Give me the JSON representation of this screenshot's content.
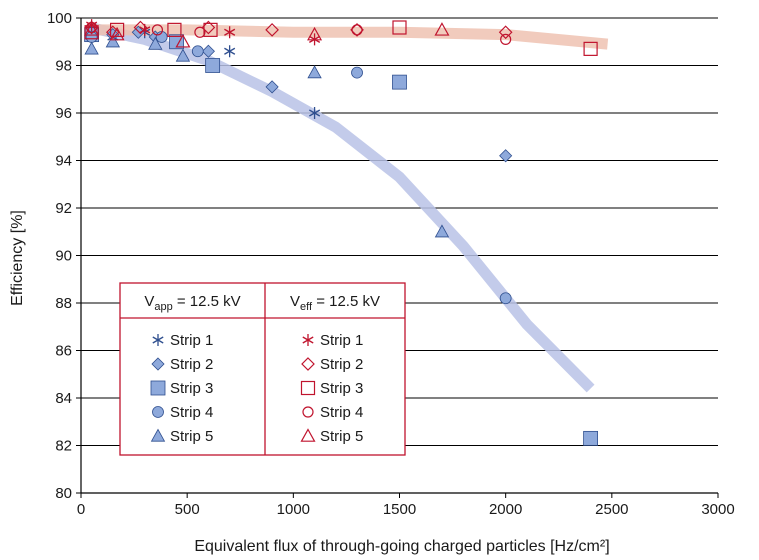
{
  "chart_data": {
    "type": "scatter",
    "xlabel": "Equivalent flux of through-going charged particles [Hz/cm²]",
    "ylabel": "Efficiency [%]",
    "xlim": [
      0,
      3000
    ],
    "ylim": [
      80,
      100
    ],
    "xticks": [
      0,
      500,
      1000,
      1500,
      2000,
      2500,
      3000
    ],
    "yticks": [
      80,
      82,
      84,
      86,
      88,
      90,
      92,
      94,
      96,
      98,
      100
    ],
    "grid": "horizontal",
    "legend_placement": "lower-left",
    "legend": {
      "group_app": "V_app = 12.5 kV",
      "group_eff": "V_eff = 12.5 kV",
      "app_head": {
        "main": "V",
        "sub": "app",
        "rest": " = 12.5 kV"
      },
      "eff_head": {
        "main": "V",
        "sub": "eff",
        "rest": " = 12.5 kV"
      }
    },
    "colors": {
      "app": "#8ea9db",
      "app_edge": "#2f4f8f",
      "eff": "#c0142e",
      "trend_app": "#b9c2e6",
      "trend_eff": "#efc2b2"
    },
    "trend_app": {
      "x": [
        40,
        300,
        600,
        900,
        1200,
        1500,
        1800,
        2100,
        2400
      ],
      "y": [
        99.6,
        99.1,
        98.2,
        96.9,
        95.4,
        93.3,
        90.4,
        87.1,
        84.4
      ]
    },
    "trend_eff": {
      "x": [
        40,
        500,
        1000,
        1500,
        2000,
        2480
      ],
      "y": [
        99.5,
        99.5,
        99.4,
        99.4,
        99.3,
        98.9
      ]
    },
    "series": [
      {
        "name": "Strip 1",
        "group": "app",
        "marker": "asterisk",
        "x": [
          50,
          150,
          300,
          450,
          700,
          1100
        ],
        "y": [
          99.5,
          99.2,
          99.4,
          99.0,
          98.6,
          96.0
        ]
      },
      {
        "name": "Strip 2",
        "group": "app",
        "marker": "diamond",
        "x": [
          50,
          150,
          270,
          350,
          600,
          900,
          2000
        ],
        "y": [
          99.4,
          99.3,
          99.4,
          99.2,
          98.6,
          97.1,
          94.2
        ]
      },
      {
        "name": "Strip 3",
        "group": "app",
        "marker": "square",
        "x": [
          50,
          450,
          620,
          1500,
          2400
        ],
        "y": [
          99.3,
          99.0,
          98.0,
          97.3,
          82.3
        ]
      },
      {
        "name": "Strip 4",
        "group": "app",
        "marker": "circle",
        "x": [
          50,
          380,
          550,
          1300,
          2000
        ],
        "y": [
          99.2,
          99.2,
          98.6,
          97.7,
          88.2
        ]
      },
      {
        "name": "Strip 5",
        "group": "app",
        "marker": "triangle",
        "x": [
          50,
          150,
          350,
          480,
          1100,
          1700
        ],
        "y": [
          98.7,
          99.0,
          98.9,
          98.4,
          97.7,
          91.0
        ]
      },
      {
        "name": "Strip 1",
        "group": "eff",
        "marker": "asterisk",
        "x": [
          50,
          300,
          700,
          1100
        ],
        "y": [
          99.7,
          99.5,
          99.4,
          99.1
        ]
      },
      {
        "name": "Strip 2",
        "group": "eff",
        "marker": "diamond",
        "x": [
          50,
          150,
          280,
          600,
          900,
          1300,
          2000
        ],
        "y": [
          99.6,
          99.4,
          99.6,
          99.6,
          99.5,
          99.5,
          99.4
        ]
      },
      {
        "name": "Strip 3",
        "group": "eff",
        "marker": "square",
        "x": [
          50,
          170,
          440,
          610,
          1500,
          2400
        ],
        "y": [
          99.4,
          99.5,
          99.5,
          99.5,
          99.6,
          98.7
        ]
      },
      {
        "name": "Strip 4",
        "group": "eff",
        "marker": "circle",
        "x": [
          50,
          360,
          560,
          1300,
          2000
        ],
        "y": [
          99.6,
          99.5,
          99.4,
          99.5,
          99.1
        ]
      },
      {
        "name": "Strip 5",
        "group": "eff",
        "marker": "triangle",
        "x": [
          50,
          170,
          480,
          1100,
          1700
        ],
        "y": [
          99.5,
          99.3,
          99.0,
          99.3,
          99.5
        ]
      }
    ]
  }
}
